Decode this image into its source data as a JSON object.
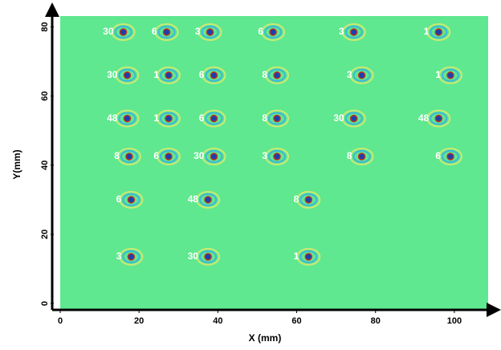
{
  "chart_data": {
    "type": "scatter",
    "x_label": "X (mm)",
    "y_label": "Y(mm)",
    "xlim": [
      0,
      110
    ],
    "ylim": [
      0,
      85
    ],
    "xticks": [
      0,
      20,
      40,
      60,
      80,
      100
    ],
    "yticks": [
      0,
      20,
      40,
      60,
      80
    ],
    "background": "#5fe88f",
    "x": [
      16,
      27,
      38,
      54,
      74.5,
      96,
      17,
      27.5,
      39,
      55,
      76.5,
      99,
      17,
      27.5,
      39,
      55,
      74.5,
      96,
      17.5,
      27.5,
      39,
      55,
      76.5,
      99,
      18,
      37.5,
      63,
      18,
      37.5,
      63
    ],
    "y": [
      78.5,
      78.5,
      78.5,
      78.5,
      78.5,
      78.5,
      66,
      66,
      66,
      66,
      66,
      66,
      53.5,
      53.5,
      53.5,
      53.5,
      53.5,
      53.5,
      42.5,
      42.5,
      42.5,
      42.5,
      42.5,
      42.5,
      30,
      30,
      30,
      13.5,
      13.5,
      13.5
    ],
    "labels": [
      30,
      6,
      3,
      6,
      3,
      1,
      30,
      1,
      6,
      8,
      3,
      1,
      48,
      1,
      6,
      8,
      30,
      48,
      8,
      6,
      30,
      3,
      8,
      6,
      6,
      48,
      8,
      3,
      30,
      1
    ]
  }
}
